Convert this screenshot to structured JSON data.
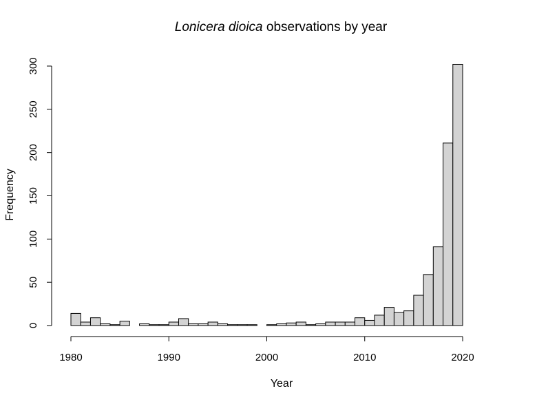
{
  "chart_data": {
    "type": "bar",
    "title_italic": "Lonicera dioica",
    "title_rest": " observations by year",
    "xlabel": "Year",
    "ylabel": "Frequency",
    "xlim": [
      1980,
      2020
    ],
    "ylim": [
      0,
      300
    ],
    "x_ticks": [
      "1980",
      "1990",
      "2000",
      "2010",
      "2020"
    ],
    "y_ticks": [
      "0",
      "50",
      "100",
      "150",
      "200",
      "250",
      "300"
    ],
    "bin_width": 1,
    "bins_start": [
      1980,
      1981,
      1982,
      1983,
      1984,
      1985,
      1986,
      1987,
      1988,
      1989,
      1990,
      1991,
      1992,
      1993,
      1994,
      1995,
      1996,
      1997,
      1998,
      1999,
      2000,
      2001,
      2002,
      2003,
      2004,
      2005,
      2006,
      2007,
      2008,
      2009,
      2010,
      2011,
      2012,
      2013,
      2014,
      2015,
      2016,
      2017,
      2018,
      2019
    ],
    "values": [
      14,
      4,
      9,
      2,
      1,
      5,
      0,
      2,
      1,
      1,
      4,
      8,
      2,
      2,
      4,
      2,
      1,
      1,
      1,
      0,
      1,
      2,
      3,
      4,
      1,
      2,
      4,
      4,
      4,
      9,
      6,
      12,
      21,
      15,
      17,
      35,
      59,
      91,
      211,
      302
    ],
    "grid": false,
    "legend": "none"
  }
}
